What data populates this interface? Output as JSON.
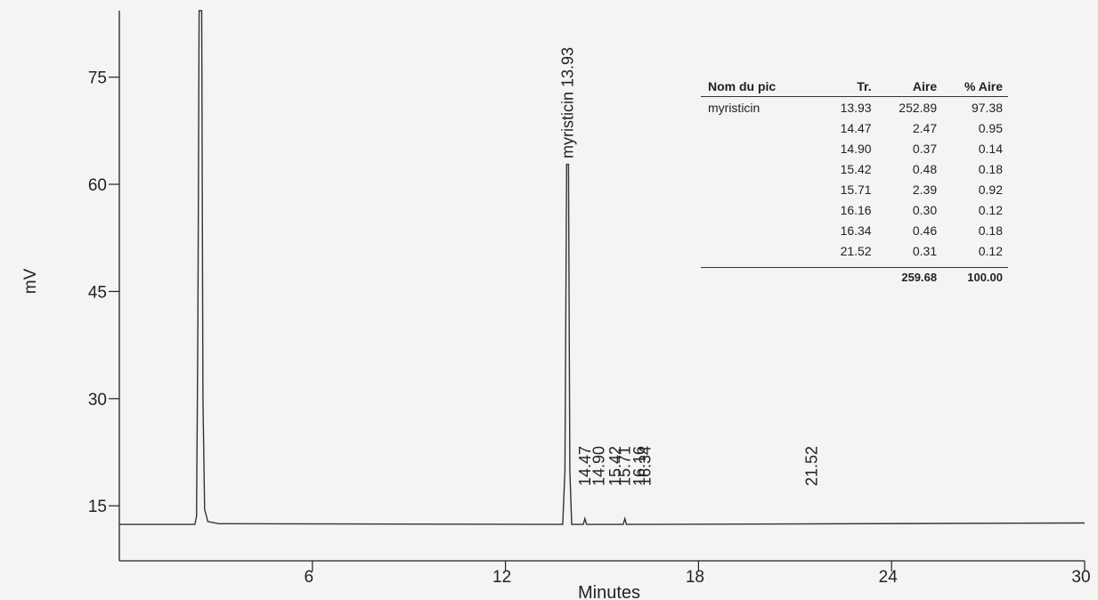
{
  "chart_data": {
    "type": "line",
    "title": "",
    "xlabel": "Minutes",
    "ylabel": "mV",
    "xlim": [
      0,
      30
    ],
    "ylim": [
      7.3,
      84.3
    ],
    "x_ticks": [
      6,
      12,
      18,
      24,
      30
    ],
    "y_ticks": [
      15,
      30,
      45,
      60,
      75
    ],
    "grid": false,
    "baseline_mV": 12.4,
    "series": [
      {
        "values": [
          [
            0,
            12.4
          ],
          [
            2.35,
            12.4
          ],
          [
            2.4,
            13.5
          ],
          [
            2.44,
            40
          ],
          [
            2.48,
            84.3
          ],
          [
            2.56,
            84.3
          ],
          [
            2.6,
            30
          ],
          [
            2.65,
            14.5
          ],
          [
            2.75,
            12.8
          ],
          [
            3.1,
            12.5
          ],
          [
            13.78,
            12.4
          ],
          [
            13.85,
            20
          ],
          [
            13.9,
            62.8
          ],
          [
            13.96,
            62.8
          ],
          [
            14.0,
            20
          ],
          [
            14.06,
            12.4
          ],
          [
            14.42,
            12.4
          ],
          [
            14.47,
            13.2
          ],
          [
            14.52,
            12.4
          ],
          [
            15.66,
            12.4
          ],
          [
            15.71,
            13.2
          ],
          [
            15.76,
            12.4
          ],
          [
            30,
            12.6
          ]
        ]
      }
    ],
    "peak_labels": [
      {
        "x": 13.93,
        "text": "myristicin 13.93"
      },
      {
        "x": 14.47,
        "text": "14.47"
      },
      {
        "x": 14.9,
        "text": "14.90"
      },
      {
        "x": 15.42,
        "text": "15.42"
      },
      {
        "x": 15.71,
        "text": "15.71"
      },
      {
        "x": 16.16,
        "text": "16.16"
      },
      {
        "x": 16.34,
        "text": "16.34"
      },
      {
        "x": 21.52,
        "text": "21.52"
      }
    ]
  },
  "peak_table": {
    "headers": [
      "Nom du pic",
      "Tr.",
      "Aire",
      "% Aire"
    ],
    "rows": [
      [
        "myristicin",
        "13.93",
        "252.89",
        "97.38"
      ],
      [
        "",
        "14.47",
        "2.47",
        "0.95"
      ],
      [
        "",
        "14.90",
        "0.37",
        "0.14"
      ],
      [
        "",
        "15.42",
        "0.48",
        "0.18"
      ],
      [
        "",
        "15.71",
        "2.39",
        "0.92"
      ],
      [
        "",
        "16.16",
        "0.30",
        "0.12"
      ],
      [
        "",
        "16.34",
        "0.46",
        "0.18"
      ],
      [
        "",
        "21.52",
        "0.31",
        "0.12"
      ]
    ],
    "total": [
      "",
      "",
      "259.68",
      "100.00"
    ]
  }
}
